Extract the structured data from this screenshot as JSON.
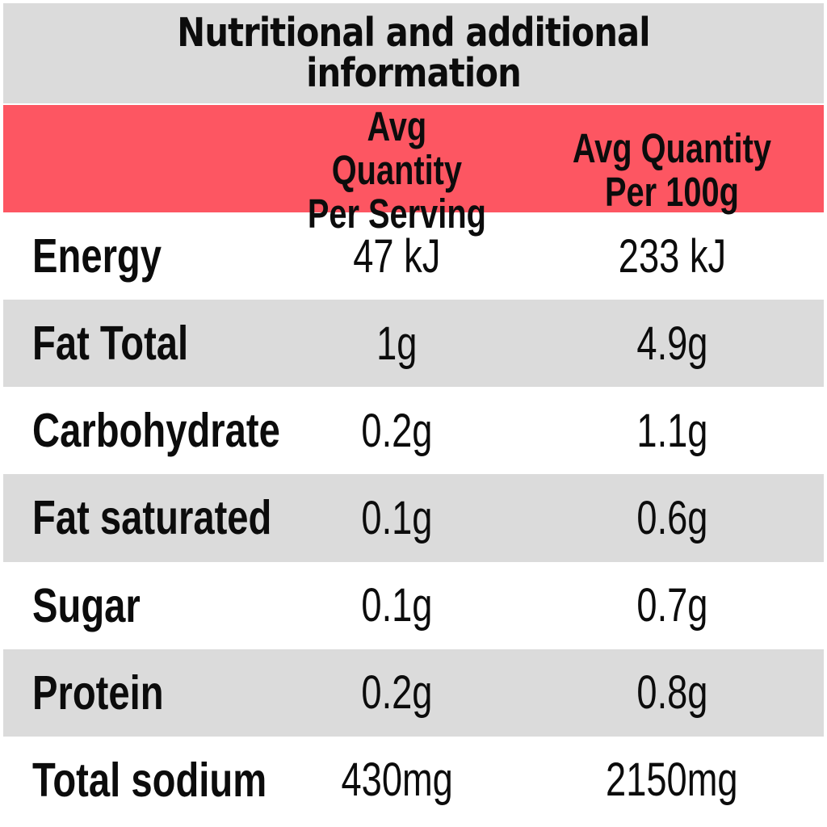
{
  "title": "Nutritional and additional information",
  "table": {
    "header": {
      "per_serving": {
        "line1": "Avg Quantity",
        "line2": "Per Serving"
      },
      "per_100g": {
        "line1": "Avg Quantity",
        "line2": "Per 100g"
      }
    },
    "rows": [
      {
        "label": "Energy",
        "per_serving": "47 kJ",
        "per_100g": "233 kJ"
      },
      {
        "label": "Fat Total",
        "per_serving": "1g",
        "per_100g": "4.9g"
      },
      {
        "label": "Carbohydrate",
        "per_serving": "0.2g",
        "per_100g": "1.1g"
      },
      {
        "label": "Fat saturated",
        "per_serving": "0.1g",
        "per_100g": "0.6g"
      },
      {
        "label": "Sugar",
        "per_serving": "0.1g",
        "per_100g": "0.7g"
      },
      {
        "label": "Protein",
        "per_serving": "0.2g",
        "per_100g": "0.8g"
      },
      {
        "label": "Total sodium",
        "per_serving": "430mg",
        "per_100g": "2150mg"
      }
    ]
  },
  "colors": {
    "banner_bg": "#dbdbdb",
    "header_bg": "#fd5662",
    "row_bg": "#ffffff",
    "row_alt_bg": "#dbdbdb",
    "text": "#0c0c0c",
    "border": "#ffffff"
  }
}
